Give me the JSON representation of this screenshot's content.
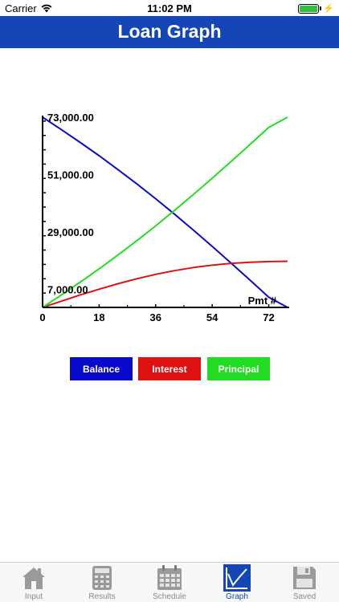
{
  "status_bar": {
    "carrier": "Carrier",
    "time": "11:02 PM"
  },
  "header": {
    "title": "Loan Graph"
  },
  "chart_data": {
    "type": "line",
    "xlabel": "Pmt #",
    "ylabel": "",
    "xlim": [
      0,
      78
    ],
    "ylim": [
      0,
      73000
    ],
    "x_ticks": [
      0,
      18,
      36,
      54,
      72
    ],
    "y_ticks": [
      7000,
      29000,
      51000,
      73000
    ],
    "y_tick_labels": [
      "7,000.00",
      "29,000.00",
      "51,000.00",
      "73,000.00"
    ],
    "grid": false,
    "series": [
      {
        "name": "Balance",
        "color": "#0a0acc",
        "x": [
          0,
          6,
          12,
          18,
          24,
          30,
          36,
          42,
          48,
          54,
          60,
          66,
          72,
          78
        ],
        "y": [
          73000,
          68200,
          63300,
          58200,
          52900,
          47400,
          41700,
          35800,
          29700,
          23400,
          17000,
          10500,
          3900,
          0
        ]
      },
      {
        "name": "Interest",
        "color": "#dd1111",
        "x": [
          0,
          6,
          12,
          18,
          24,
          30,
          36,
          42,
          48,
          54,
          60,
          66,
          72,
          78
        ],
        "y": [
          0,
          2400,
          4800,
          7000,
          9100,
          11000,
          12700,
          14100,
          15300,
          16200,
          16900,
          17300,
          17600,
          17700
        ]
      },
      {
        "name": "Principal",
        "color": "#22dd22",
        "x": [
          0,
          6,
          12,
          18,
          24,
          30,
          36,
          42,
          48,
          54,
          60,
          66,
          72,
          78
        ],
        "y": [
          0,
          4800,
          9700,
          14800,
          20100,
          25600,
          31300,
          37200,
          43300,
          49600,
          56000,
          62500,
          69100,
          73000
        ]
      }
    ]
  },
  "legend": {
    "items": [
      {
        "label": "Balance",
        "color": "#0a0acc"
      },
      {
        "label": "Interest",
        "color": "#dd1111"
      },
      {
        "label": "Principal",
        "color": "#22dd22"
      }
    ]
  },
  "tab_bar": {
    "tabs": [
      {
        "label": "Input",
        "icon": "house-icon",
        "active": false
      },
      {
        "label": "Results",
        "icon": "calculator-icon",
        "active": false
      },
      {
        "label": "Schedule",
        "icon": "calendar-icon",
        "active": false
      },
      {
        "label": "Graph",
        "icon": "graph-icon",
        "active": true
      },
      {
        "label": "Saved",
        "icon": "floppy-disk-icon",
        "active": false
      }
    ]
  }
}
